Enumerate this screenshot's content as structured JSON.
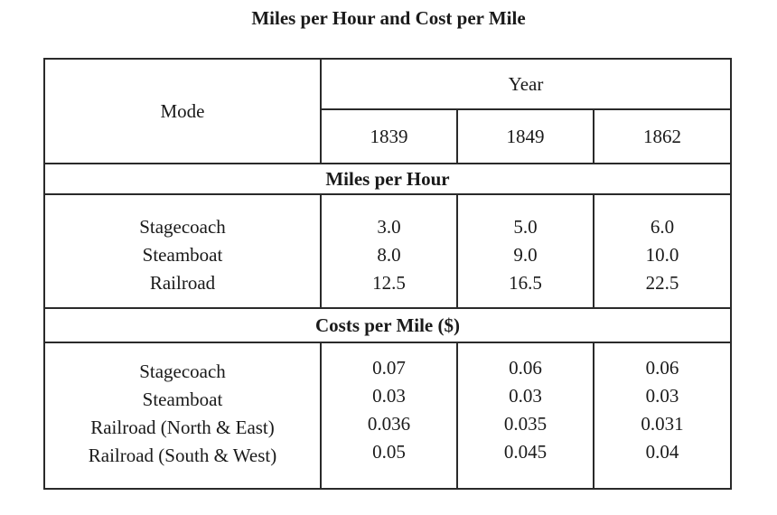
{
  "title": "Miles per Hour and Cost per Mile",
  "header": {
    "mode_label": "Mode",
    "year_label": "Year",
    "years": [
      "1839",
      "1849",
      "1862"
    ]
  },
  "sections": [
    {
      "label": "Miles per Hour",
      "modes": [
        "Stagecoach",
        "Steamboat",
        "Railroad"
      ],
      "columns": [
        [
          "3.0",
          "8.0",
          "12.5"
        ],
        [
          "5.0",
          "9.0",
          "16.5"
        ],
        [
          "6.0",
          "10.0",
          "22.5"
        ]
      ]
    },
    {
      "label": "Costs per Mile ($)",
      "modes": [
        "Stagecoach",
        "Steamboat",
        "Railroad (North & East)",
        "Railroad (South & West)"
      ],
      "columns": [
        [
          "0.07",
          "0.03",
          "0.036",
          "0.05"
        ],
        [
          "0.06",
          "0.03",
          "0.035",
          "0.045"
        ],
        [
          "0.06",
          "0.03",
          "0.031",
          "0.04"
        ]
      ]
    }
  ]
}
